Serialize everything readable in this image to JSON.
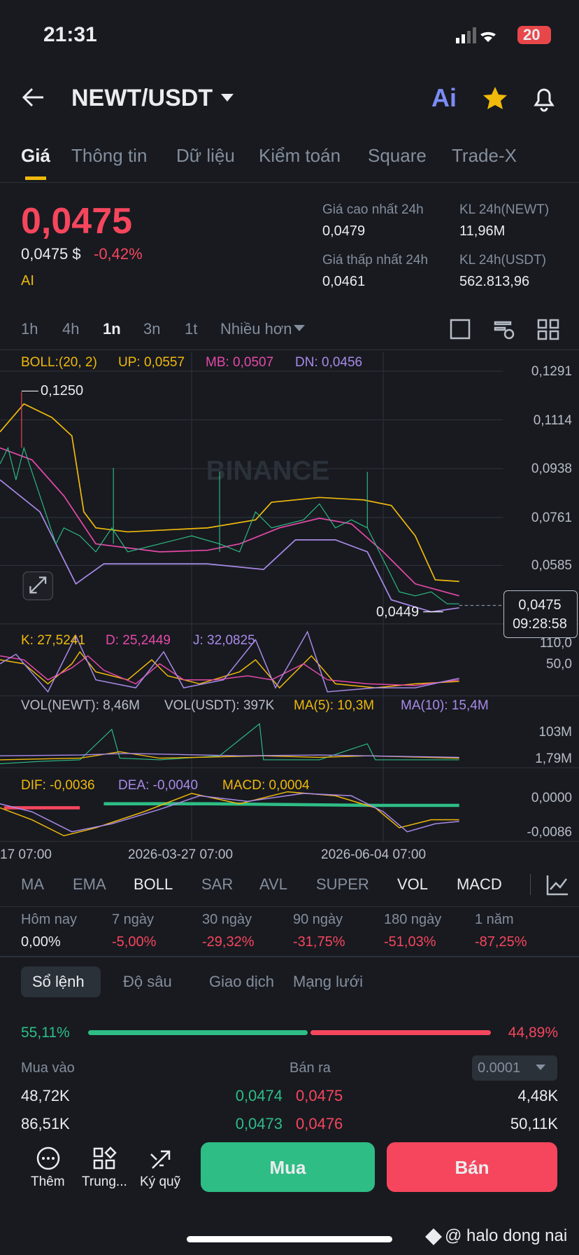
{
  "status": {
    "time": "21:31",
    "battery": "20"
  },
  "header": {
    "pair": "NEWT/USDT",
    "ai": "Ai"
  },
  "tabs": [
    "Giá",
    "Thông tin",
    "Dữ liệu",
    "Kiểm toán",
    "Square",
    "Trade-X"
  ],
  "price": {
    "last": "0,0475",
    "usd": "0,0475 $",
    "change": "-0,42%",
    "ai": "AI"
  },
  "stats": [
    {
      "label": "Giá cao nhất 24h",
      "value": "0,0479"
    },
    {
      "label": "KL 24h(NEWT)",
      "value": "11,96M"
    },
    {
      "label": "Giá thấp nhất 24h",
      "value": "0,0461"
    },
    {
      "label": "KL 24h(USDT)",
      "value": "562.813,96"
    }
  ],
  "intervals": [
    "1h",
    "4h",
    "1n",
    "3n",
    "1t",
    "Nhiều hơn"
  ],
  "chart": {
    "boll": [
      "BOLL:(20, 2)",
      "UP: 0,0557",
      "MB: 0,0507",
      "DN: 0,0456"
    ],
    "price_axis": [
      "0,1291",
      "0,1114",
      "0,0938",
      "0,0761",
      "0,0585"
    ],
    "high": "0,1250",
    "low": "0,0449",
    "current": "0,0475",
    "countdown": "09:28:58",
    "watermark": "BINANCE",
    "kdj": [
      "K: 27,5241",
      "D: 25,2449",
      "J: 32,0825"
    ],
    "kdj_axis": [
      "110,0",
      "50,0"
    ],
    "vol": [
      "VOL(NEWT): 8,46M",
      "VOL(USDT): 397K",
      "MA(5): 10,3M",
      "MA(10): 15,4M"
    ],
    "vol_axis": [
      "103M",
      "1,79M"
    ],
    "macd": [
      "DIF: -0,0036",
      "DEA: -0,0040",
      "MACD: 0,0004"
    ],
    "macd_axis": [
      "0,0000",
      "-0,0086"
    ],
    "dates": [
      "17 07:00",
      "2026-03-27 07:00",
      "2026-06-04 07:00"
    ]
  },
  "indicators": [
    "MA",
    "EMA",
    "BOLL",
    "SAR",
    "AVL",
    "SUPER",
    "VOL",
    "MACD"
  ],
  "performance": [
    {
      "label": "Hôm nay",
      "value": "0,00%"
    },
    {
      "label": "7 ngày",
      "value": "-5,00%"
    },
    {
      "label": "30 ngày",
      "value": "-29,32%"
    },
    {
      "label": "90 ngày",
      "value": "-31,75%"
    },
    {
      "label": "180 ngày",
      "value": "-51,03%"
    },
    {
      "label": "1 năm",
      "value": "-87,25%"
    }
  ],
  "orderbook": {
    "tabs": [
      "Sổ lệnh",
      "Độ sâu",
      "Giao dịch",
      "Mạng lưới"
    ],
    "buy_pct": "55,11%",
    "sell_pct": "44,89%",
    "buy_header": "Mua vào",
    "sell_header": "Bán ra",
    "step": "0.0001",
    "rows": [
      [
        "48,72K",
        "0,0474",
        "0,0475",
        "4,48K"
      ],
      [
        "86,51K",
        "0,0473",
        "0,0476",
        "50,11K"
      ]
    ]
  },
  "bottom": {
    "more": "Thêm",
    "center": "Trung...",
    "margin": "Ký quỹ",
    "buy": "Mua",
    "sell": "Bán",
    "credit": "@ halo dong nai"
  }
}
